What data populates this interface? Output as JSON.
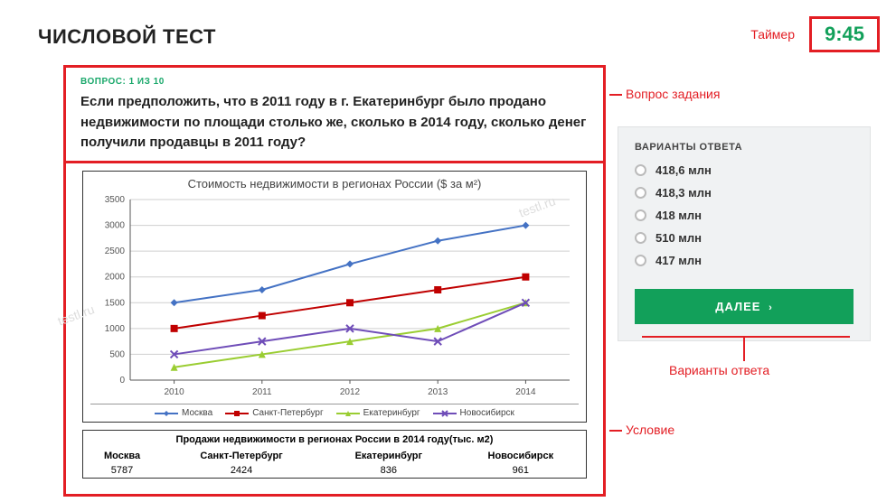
{
  "page": {
    "title": "ЧИСЛОВОЙ ТЕСТ",
    "timer_label": "Таймер",
    "timer_value": "9:45"
  },
  "question": {
    "meta": "ВОПРОС: 1 ИЗ 10",
    "text": "Если предположить, что в 2011 году в г. Екатеринбург было продано недвижимости по площади столько же, сколько в 2014 году, сколько денег получили продавцы в 2011 году?"
  },
  "chart": {
    "type": "line",
    "title": "Стоимость недвижимости в регионах России ($ за м²)",
    "x_labels": [
      "2010",
      "2011",
      "2012",
      "2013",
      "2014"
    ],
    "y_ticks": [
      0,
      500,
      1000,
      1500,
      2000,
      2500,
      3000,
      3500
    ],
    "ylim": [
      0,
      3500
    ],
    "series": [
      {
        "name": "Москва",
        "color": "#4472c4",
        "marker": "diamond",
        "values": [
          1500,
          1750,
          2250,
          2700,
          3000
        ]
      },
      {
        "name": "Санкт-Петербург",
        "color": "#c00000",
        "marker": "square",
        "values": [
          1000,
          1250,
          1500,
          1750,
          2000
        ]
      },
      {
        "name": "Екатеринбург",
        "color": "#9acd32",
        "marker": "triangle",
        "values": [
          250,
          500,
          750,
          1000,
          1500
        ]
      },
      {
        "name": "Новосибирск",
        "color": "#6f4db8",
        "marker": "cross",
        "values": [
          500,
          750,
          1000,
          750,
          1500
        ]
      }
    ],
    "grid_color": "#cfcfcf",
    "axis_color": "#555",
    "label_fontsize": 10
  },
  "sales_table": {
    "title": "Продажи недвижимости в регионах России в 2014 году(тыс. м2)",
    "columns": [
      "Москва",
      "Санкт-Петербург",
      "Екатеринбург",
      "Новосибирск"
    ],
    "values": [
      "5787",
      "2424",
      "836",
      "961"
    ]
  },
  "answers": {
    "title": "ВАРИАНТЫ ОТВЕТА",
    "options": [
      "418,6 млн",
      "418,3 млн",
      "418 млн",
      "510 млн",
      "417 млн"
    ],
    "next_label": "ДАЛЕЕ"
  },
  "annotations": {
    "question": "Вопрос задания",
    "answers": "Варианты ответа",
    "condition": "Условие"
  },
  "colors": {
    "red": "#e31e24",
    "green": "#12a05a",
    "panel_bg": "#f0f2f3"
  }
}
